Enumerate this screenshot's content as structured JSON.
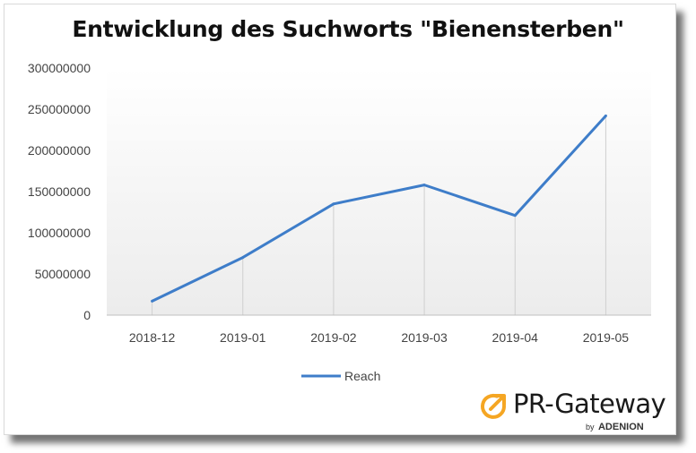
{
  "chart_data": {
    "type": "line",
    "title": "Entwicklung des Suchworts \"Bienensterben\"",
    "categories": [
      "2018-12",
      "2019-01",
      "2019-02",
      "2019-03",
      "2019-04",
      "2019-05"
    ],
    "series": [
      {
        "name": "Reach",
        "values": [
          17000000,
          70000000,
          135000000,
          158000000,
          121000000,
          242000000
        ],
        "color": "#3e7dc9"
      }
    ],
    "ylim": [
      0,
      300000000
    ],
    "yticks": [
      "0",
      "50000000",
      "100000000",
      "150000000",
      "200000000",
      "250000000",
      "300000000"
    ],
    "xlabel": "",
    "ylabel": "",
    "grid": "vertical drop lines at each category",
    "legend_position": "bottom"
  },
  "logo": {
    "name": "PR-Gateway",
    "by": "by",
    "brand": "ADENION",
    "accent_color": "#f5a623"
  }
}
